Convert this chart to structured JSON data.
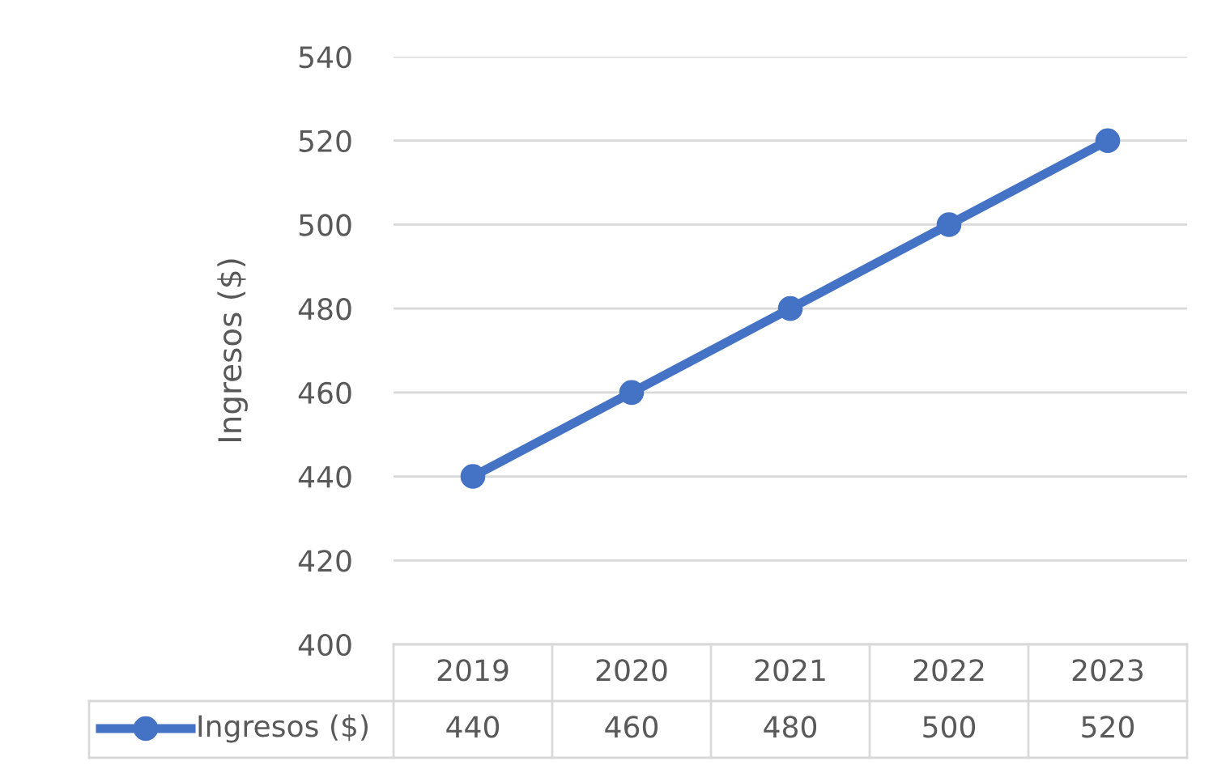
{
  "chart_data": {
    "type": "line",
    "ylabel": "Ingresos ($)",
    "categories": [
      "2019",
      "2020",
      "2021",
      "2022",
      "2023"
    ],
    "series": [
      {
        "name": "Ingresos ($)",
        "color": "#4472c4",
        "values": [
          440,
          460,
          480,
          500,
          520
        ]
      }
    ],
    "ylim": [
      400,
      540
    ],
    "yticks": [
      400,
      420,
      440,
      460,
      480,
      500,
      520,
      540
    ],
    "grid": "y",
    "marker": "circle",
    "line_style": "solid",
    "data_labels": true,
    "legend": "bottom"
  }
}
